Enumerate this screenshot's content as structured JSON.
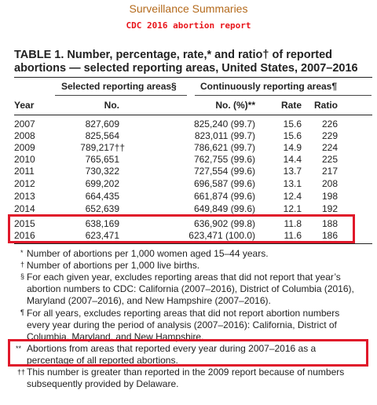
{
  "header": "Surveillance Summaries",
  "subheader": "CDC 2016 abortion report",
  "table": {
    "title_line1": "TABLE 1. Number, percentage, rate,* and ratio† of reported",
    "title_line2": "abortions — selected reporting areas, United States, 2007–2016",
    "group1": "Selected reporting areas§",
    "group2": "Continuously reporting areas¶",
    "columns": [
      "Year",
      "No.",
      "No. (%)**",
      "Rate",
      "Ratio"
    ],
    "rows": [
      {
        "year": "2007",
        "no": "827,609",
        "no_pct": "825,240 (99.7)",
        "rate": "15.6",
        "ratio": "226"
      },
      {
        "year": "2008",
        "no": "825,564",
        "no_pct": "823,011 (99.7)",
        "rate": "15.6",
        "ratio": "229"
      },
      {
        "year": "2009",
        "no": "789,217††",
        "no_pct": "786,621 (99.7)",
        "rate": "14.9",
        "ratio": "224"
      },
      {
        "year": "2010",
        "no": "765,651",
        "no_pct": "762,755 (99.6)",
        "rate": "14.4",
        "ratio": "225"
      },
      {
        "year": "2011",
        "no": "730,322",
        "no_pct": "727,554 (99.6)",
        "rate": "13.7",
        "ratio": "217"
      },
      {
        "year": "2012",
        "no": "699,202",
        "no_pct": "696,587 (99.6)",
        "rate": "13.1",
        "ratio": "208"
      },
      {
        "year": "2013",
        "no": "664,435",
        "no_pct": "661,874 (99.6)",
        "rate": "12.4",
        "ratio": "198"
      },
      {
        "year": "2014",
        "no": "652,639",
        "no_pct": "649,849 (99.6)",
        "rate": "12.1",
        "ratio": "192"
      },
      {
        "year": "2015",
        "no": "638,169",
        "no_pct": "636,902 (99.8)",
        "rate": "11.8",
        "ratio": "188"
      },
      {
        "year": "2016",
        "no": "623,471",
        "no_pct": "623,471 (100.0)",
        "rate": "11.6",
        "ratio": "186"
      }
    ]
  },
  "footnotes": {
    "f1_sym": "*",
    "f1": "Number of abortions per 1,000 women aged 15–44 years.",
    "f2_sym": "†",
    "f2": "Number of abortions per 1,000 live births.",
    "f3_sym": "§",
    "f3_l1": "For each given year, excludes reporting areas that did not report that year’s",
    "f3_l2": "abortion numbers to CDC: California (2007–2016), District of Columbia (2016),",
    "f3_l3": "Maryland (2007–2016), and New Hampshire (2007–2016).",
    "f4_sym": "¶",
    "f4_l1": "For all years, excludes reporting areas that did not report abortion numbers",
    "f4_l2": "every year during the period of analysis (2007–2016): California, District of",
    "f4_l3": "Columbia, Maryland, and New Hampshire.",
    "f5_sym": "**",
    "f5_l1": "Abortions from areas that reported every year during 2007–2016 as a",
    "f5_l2": "percentage of all reported abortions.",
    "f6_sym": "††",
    "f6_l1": "This number is greater than reported in the 2009 report because of numbers",
    "f6_l2": "subsequently provided by Delaware."
  },
  "colors": {
    "highlight": "#e0182a",
    "header": "#b46a1c",
    "subheader": "#e8141a"
  }
}
